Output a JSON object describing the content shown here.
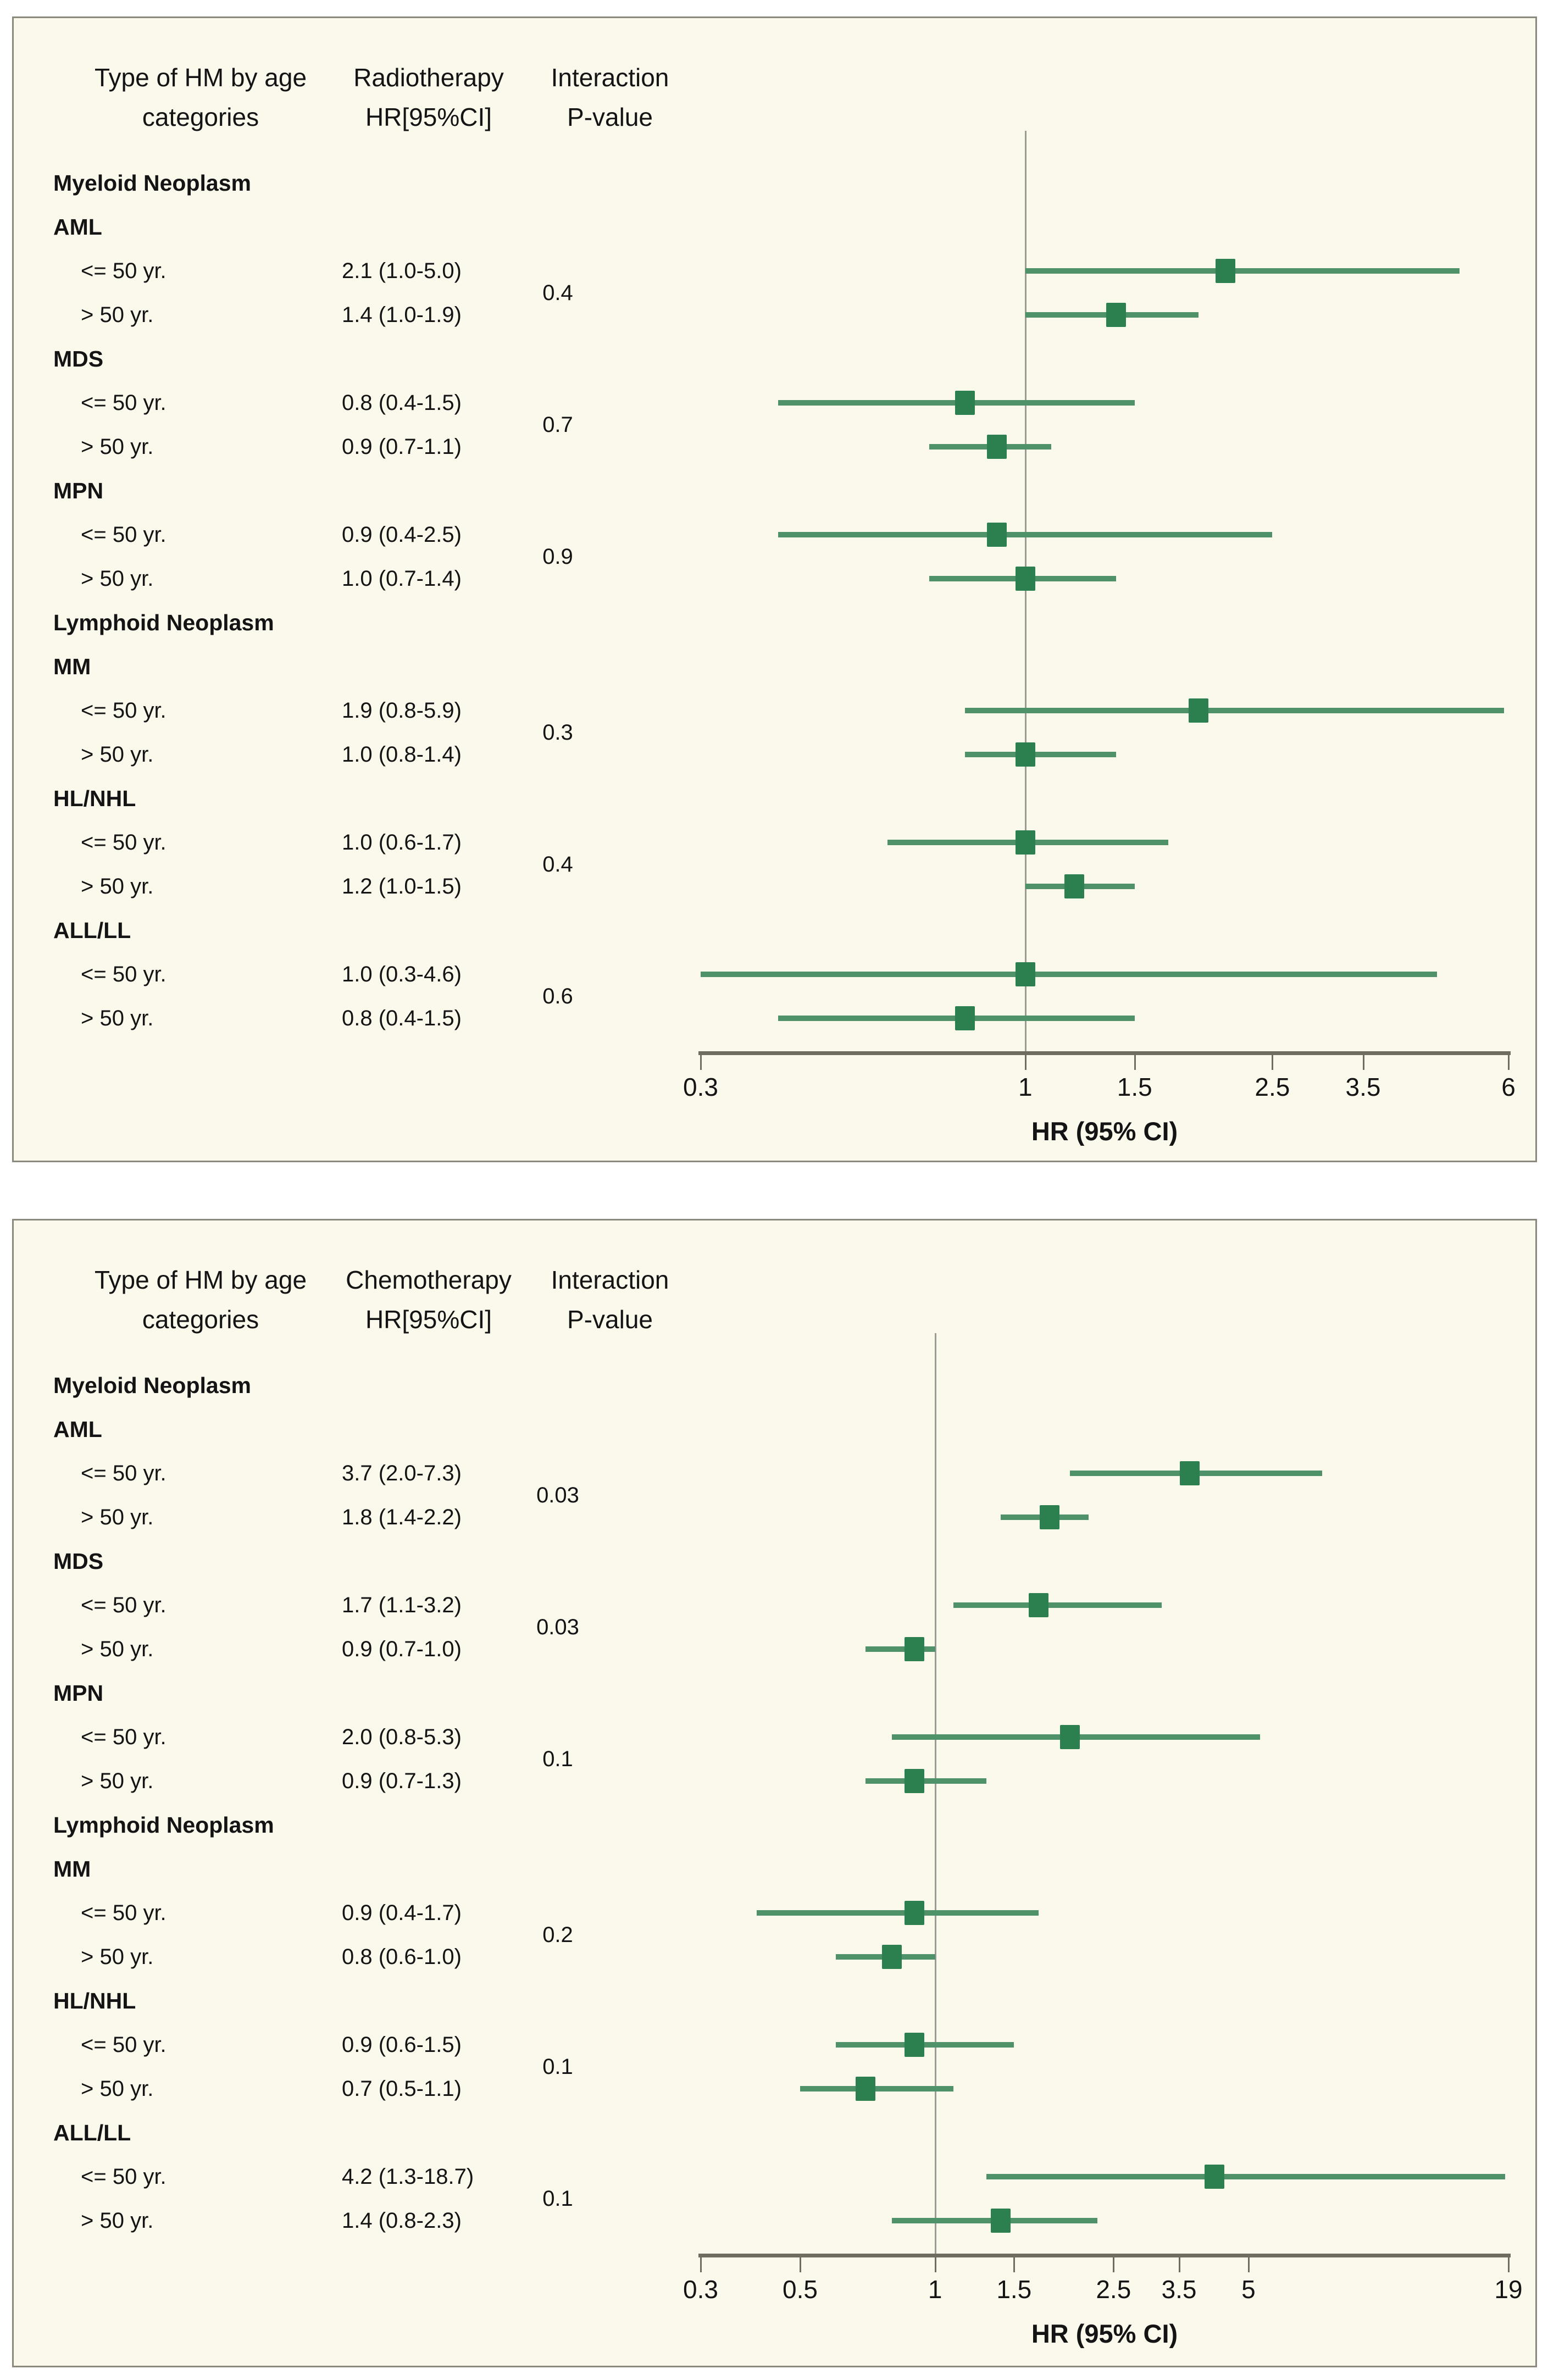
{
  "figure": {
    "description": "Forest plots of hazard ratios for hematologic malignancies by age category",
    "xaxis_title": "HR (95% CI)"
  },
  "colors": {
    "marker": "#2c7f4f",
    "ci_line": "#4f9168",
    "reference_line": "#9a9b94",
    "axis": "#6f6d5f",
    "panel_background": "#fbf8ec",
    "panel_border": "#8b897e",
    "text": "#141414"
  },
  "chart_data": [
    {
      "type": "forest",
      "treatment": "Radiotherapy",
      "columns": {
        "category_line1": "Type of HM by age",
        "category_line2": "categories",
        "estimate_line1": "Radiotherapy",
        "estimate_line2": "HR[95%CI]",
        "pvalue_line1": "Interaction",
        "pvalue_line2": "P-value"
      },
      "axis": {
        "scale": "log",
        "min": 0.3,
        "max": 6,
        "ref_line": 1,
        "label": "HR (95% CI)",
        "ticks": [
          {
            "v": 0.3,
            "label": "0.3"
          },
          {
            "v": 1,
            "label": "1"
          },
          {
            "v": 1.5,
            "label": "1.5"
          },
          {
            "v": 2.5,
            "label": "2.5"
          },
          {
            "v": 3.5,
            "label": "3.5"
          },
          {
            "v": 6,
            "label": "6"
          }
        ]
      },
      "rows": [
        {
          "type": "group",
          "label": "Myeloid Neoplasm"
        },
        {
          "type": "subtype",
          "label": "AML"
        },
        {
          "type": "data",
          "label": "<= 50 yr.",
          "estimate_text": "2.1 (1.0-5.0)",
          "hr": 2.1,
          "lo": 1.0,
          "hi": 5.0,
          "interaction_p": "0.4"
        },
        {
          "type": "data",
          "label": "> 50 yr.",
          "estimate_text": "1.4 (1.0-1.9)",
          "hr": 1.4,
          "lo": 1.0,
          "hi": 1.9
        },
        {
          "type": "subtype",
          "label": "MDS"
        },
        {
          "type": "data",
          "label": "<= 50 yr.",
          "estimate_text": "0.8 (0.4-1.5)",
          "hr": 0.8,
          "lo": 0.4,
          "hi": 1.5,
          "interaction_p": "0.7"
        },
        {
          "type": "data",
          "label": "> 50 yr.",
          "estimate_text": "0.9 (0.7-1.1)",
          "hr": 0.9,
          "lo": 0.7,
          "hi": 1.1
        },
        {
          "type": "subtype",
          "label": "MPN"
        },
        {
          "type": "data",
          "label": "<= 50 yr.",
          "estimate_text": "0.9 (0.4-2.5)",
          "hr": 0.9,
          "lo": 0.4,
          "hi": 2.5,
          "interaction_p": "0.9"
        },
        {
          "type": "data",
          "label": "> 50 yr.",
          "estimate_text": "1.0 (0.7-1.4)",
          "hr": 1.0,
          "lo": 0.7,
          "hi": 1.4
        },
        {
          "type": "group",
          "label": "Lymphoid Neoplasm"
        },
        {
          "type": "subtype",
          "label": "MM"
        },
        {
          "type": "data",
          "label": "<= 50 yr.",
          "estimate_text": "1.9 (0.8-5.9)",
          "hr": 1.9,
          "lo": 0.8,
          "hi": 5.9,
          "interaction_p": "0.3"
        },
        {
          "type": "data",
          "label": "> 50 yr.",
          "estimate_text": "1.0 (0.8-1.4)",
          "hr": 1.0,
          "lo": 0.8,
          "hi": 1.4
        },
        {
          "type": "subtype",
          "label": "HL/NHL"
        },
        {
          "type": "data",
          "label": "<= 50 yr.",
          "estimate_text": "1.0 (0.6-1.7)",
          "hr": 1.0,
          "lo": 0.6,
          "hi": 1.7,
          "interaction_p": "0.4"
        },
        {
          "type": "data",
          "label": "> 50 yr.",
          "estimate_text": "1.2 (1.0-1.5)",
          "hr": 1.2,
          "lo": 1.0,
          "hi": 1.5
        },
        {
          "type": "subtype",
          "label": "ALL/LL"
        },
        {
          "type": "data",
          "label": "<= 50 yr.",
          "estimate_text": "1.0 (0.3-4.6)",
          "hr": 1.0,
          "lo": 0.3,
          "hi": 4.6,
          "interaction_p": "0.6"
        },
        {
          "type": "data",
          "label": "> 50 yr.",
          "estimate_text": "0.8 (0.4-1.5)",
          "hr": 0.8,
          "lo": 0.4,
          "hi": 1.5
        }
      ]
    },
    {
      "type": "forest",
      "treatment": "Chemotherapy",
      "columns": {
        "category_line1": "Type of HM by age",
        "category_line2": "categories",
        "estimate_line1": "Chemotherapy",
        "estimate_line2": "HR[95%CI]",
        "pvalue_line1": "Interaction",
        "pvalue_line2": "P-value"
      },
      "axis": {
        "scale": "log",
        "min": 0.3,
        "max": 19,
        "ref_line": 1,
        "label": "HR (95% CI)",
        "ticks": [
          {
            "v": 0.3,
            "label": "0.3"
          },
          {
            "v": 0.5,
            "label": "0.5"
          },
          {
            "v": 1,
            "label": "1"
          },
          {
            "v": 1.5,
            "label": "1.5"
          },
          {
            "v": 2.5,
            "label": "2.5"
          },
          {
            "v": 3.5,
            "label": "3.5"
          },
          {
            "v": 5,
            "label": "5"
          },
          {
            "v": 19,
            "label": "19"
          }
        ]
      },
      "rows": [
        {
          "type": "group",
          "label": "Myeloid Neoplasm"
        },
        {
          "type": "subtype",
          "label": "AML"
        },
        {
          "type": "data",
          "label": "<= 50 yr.",
          "estimate_text": "3.7 (2.0-7.3)",
          "hr": 3.7,
          "lo": 2.0,
          "hi": 7.3,
          "interaction_p": "0.03"
        },
        {
          "type": "data",
          "label": "> 50 yr.",
          "estimate_text": "1.8 (1.4-2.2)",
          "hr": 1.8,
          "lo": 1.4,
          "hi": 2.2
        },
        {
          "type": "subtype",
          "label": "MDS"
        },
        {
          "type": "data",
          "label": "<= 50 yr.",
          "estimate_text": "1.7 (1.1-3.2)",
          "hr": 1.7,
          "lo": 1.1,
          "hi": 3.2,
          "interaction_p": "0.03"
        },
        {
          "type": "data",
          "label": "> 50 yr.",
          "estimate_text": "0.9 (0.7-1.0)",
          "hr": 0.9,
          "lo": 0.7,
          "hi": 1.0
        },
        {
          "type": "subtype",
          "label": "MPN"
        },
        {
          "type": "data",
          "label": "<= 50 yr.",
          "estimate_text": "2.0 (0.8-5.3)",
          "hr": 2.0,
          "lo": 0.8,
          "hi": 5.3,
          "interaction_p": "0.1"
        },
        {
          "type": "data",
          "label": "> 50 yr.",
          "estimate_text": "0.9 (0.7-1.3)",
          "hr": 0.9,
          "lo": 0.7,
          "hi": 1.3
        },
        {
          "type": "group",
          "label": "Lymphoid Neoplasm"
        },
        {
          "type": "subtype",
          "label": "MM"
        },
        {
          "type": "data",
          "label": "<= 50 yr.",
          "estimate_text": "0.9 (0.4-1.7)",
          "hr": 0.9,
          "lo": 0.4,
          "hi": 1.7,
          "interaction_p": "0.2"
        },
        {
          "type": "data",
          "label": "> 50 yr.",
          "estimate_text": "0.8 (0.6-1.0)",
          "hr": 0.8,
          "lo": 0.6,
          "hi": 1.0
        },
        {
          "type": "subtype",
          "label": "HL/NHL"
        },
        {
          "type": "data",
          "label": "<= 50 yr.",
          "estimate_text": "0.9 (0.6-1.5)",
          "hr": 0.9,
          "lo": 0.6,
          "hi": 1.5,
          "interaction_p": "0.1"
        },
        {
          "type": "data",
          "label": "> 50 yr.",
          "estimate_text": "0.7 (0.5-1.1)",
          "hr": 0.7,
          "lo": 0.5,
          "hi": 1.1
        },
        {
          "type": "subtype",
          "label": "ALL/LL"
        },
        {
          "type": "data",
          "label": "<= 50 yr.",
          "estimate_text": "4.2 (1.3-18.7)",
          "hr": 4.2,
          "lo": 1.3,
          "hi": 18.7,
          "interaction_p": "0.1"
        },
        {
          "type": "data",
          "label": "> 50 yr.",
          "estimate_text": "1.4 (0.8-2.3)",
          "hr": 1.4,
          "lo": 0.8,
          "hi": 2.3
        }
      ]
    }
  ]
}
